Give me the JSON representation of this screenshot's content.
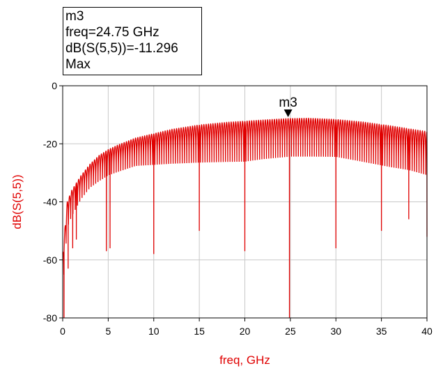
{
  "marker": {
    "name": "m3",
    "freq_text": "freq=24.75 GHz",
    "value_text": "dB(S(5,5))=-11.296",
    "mode": "Max",
    "x": 24.75,
    "y": -11.296
  },
  "chart_data": {
    "type": "line",
    "xlabel": "freq, GHz",
    "ylabel": "dB(S(5,5))",
    "xlim": [
      0,
      40
    ],
    "ylim": [
      -80,
      0
    ],
    "xticks": [
      0,
      5,
      10,
      15,
      20,
      25,
      30,
      35,
      40
    ],
    "yticks": [
      0,
      -20,
      -40,
      -60,
      -80
    ],
    "grid": true,
    "color": "#e00000",
    "series": [
      {
        "ripple_period_ghz": 0.25,
        "envelope_max": [
          [
            0,
            -58
          ],
          [
            0.5,
            -40
          ],
          [
            1,
            -36
          ],
          [
            2,
            -31
          ],
          [
            3,
            -27
          ],
          [
            4,
            -24
          ],
          [
            5,
            -22
          ],
          [
            6,
            -20.5
          ],
          [
            8,
            -18
          ],
          [
            10,
            -16.5
          ],
          [
            12,
            -15
          ],
          [
            15,
            -13.5
          ],
          [
            18,
            -12.6
          ],
          [
            20,
            -12.2
          ],
          [
            22,
            -11.8
          ],
          [
            24.75,
            -11.3
          ],
          [
            27,
            -11.2
          ],
          [
            30,
            -11.6
          ],
          [
            33,
            -12.5
          ],
          [
            36,
            -13.8
          ],
          [
            38,
            -14.8
          ],
          [
            40,
            -15.8
          ]
        ],
        "envelope_min": [
          [
            0,
            -75
          ],
          [
            0.5,
            -52
          ],
          [
            1,
            -48
          ],
          [
            2,
            -42
          ],
          [
            3,
            -38
          ],
          [
            4,
            -36
          ],
          [
            5,
            -34
          ],
          [
            6,
            -33
          ],
          [
            8,
            -31
          ],
          [
            10,
            -31
          ],
          [
            12,
            -31
          ],
          [
            15,
            -31
          ],
          [
            18,
            -31
          ],
          [
            20,
            -31
          ],
          [
            22,
            -30
          ],
          [
            25,
            -29
          ],
          [
            28,
            -29
          ],
          [
            30,
            -29
          ],
          [
            33,
            -31
          ],
          [
            36,
            -33
          ],
          [
            38,
            -34
          ],
          [
            40,
            -36
          ]
        ],
        "deep_nulls": [
          [
            0.15,
            -80
          ],
          [
            0.6,
            -63
          ],
          [
            1.1,
            -56
          ],
          [
            1.5,
            -53
          ],
          [
            4.8,
            -57
          ],
          [
            5.2,
            -56
          ],
          [
            10,
            -58
          ],
          [
            15,
            -50
          ],
          [
            20,
            -57
          ],
          [
            24.9,
            -80
          ],
          [
            30,
            -56
          ],
          [
            35,
            -50
          ],
          [
            38,
            -46
          ],
          [
            40,
            -52
          ]
        ]
      }
    ]
  }
}
